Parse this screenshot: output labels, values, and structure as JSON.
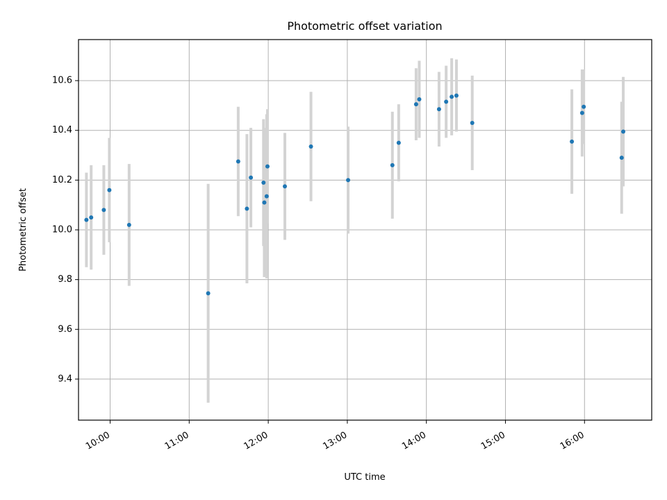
{
  "chart_data": {
    "type": "scatter",
    "title": "Photometric offset variation",
    "xlabel": "UTC time",
    "ylabel": "Photometric offset",
    "x_unit": "hours (UTC)",
    "xlim": [
      9.6,
      16.85
    ],
    "ylim": [
      9.235,
      10.765
    ],
    "xticks": [
      {
        "value": 10,
        "label": "10:00"
      },
      {
        "value": 11,
        "label": "11:00"
      },
      {
        "value": 12,
        "label": "12:00"
      },
      {
        "value": 13,
        "label": "13:00"
      },
      {
        "value": 14,
        "label": "14:00"
      },
      {
        "value": 15,
        "label": "15:00"
      },
      {
        "value": 16,
        "label": "16:00"
      }
    ],
    "yticks": [
      {
        "value": 9.4,
        "label": "9.4"
      },
      {
        "value": 9.6,
        "label": "9.6"
      },
      {
        "value": 9.8,
        "label": "9.8"
      },
      {
        "value": 10.0,
        "label": "10.0"
      },
      {
        "value": 10.2,
        "label": "10.2"
      },
      {
        "value": 10.4,
        "label": "10.4"
      },
      {
        "value": 10.6,
        "label": "10.6"
      }
    ],
    "grid": true,
    "colors": {
      "points": "#1f77b4",
      "errorbars": "#d3d3d3"
    },
    "points": [
      {
        "x": 9.7,
        "y": 10.04,
        "err": 0.19
      },
      {
        "x": 9.76,
        "y": 10.05,
        "err": 0.21
      },
      {
        "x": 9.92,
        "y": 10.08,
        "err": 0.18
      },
      {
        "x": 9.99,
        "y": 10.16,
        "err": 0.21
      },
      {
        "x": 10.24,
        "y": 10.02,
        "err": 0.245
      },
      {
        "x": 11.24,
        "y": 9.745,
        "err": 0.44
      },
      {
        "x": 11.62,
        "y": 10.275,
        "err": 0.22
      },
      {
        "x": 11.73,
        "y": 10.085,
        "err": 0.3
      },
      {
        "x": 11.78,
        "y": 10.21,
        "err": 0.2
      },
      {
        "x": 11.94,
        "y": 10.19,
        "err": 0.255
      },
      {
        "x": 11.95,
        "y": 10.11,
        "err": 0.3
      },
      {
        "x": 11.98,
        "y": 10.135,
        "err": 0.33
      },
      {
        "x": 11.99,
        "y": 10.255,
        "err": 0.23
      },
      {
        "x": 12.21,
        "y": 10.175,
        "err": 0.215
      },
      {
        "x": 12.54,
        "y": 10.335,
        "err": 0.22
      },
      {
        "x": 13.01,
        "y": 10.2,
        "err": 0.215
      },
      {
        "x": 13.57,
        "y": 10.26,
        "err": 0.215
      },
      {
        "x": 13.65,
        "y": 10.35,
        "err": 0.155
      },
      {
        "x": 13.87,
        "y": 10.505,
        "err": 0.145
      },
      {
        "x": 13.91,
        "y": 10.525,
        "err": 0.155
      },
      {
        "x": 14.16,
        "y": 10.485,
        "err": 0.15
      },
      {
        "x": 14.25,
        "y": 10.515,
        "err": 0.145
      },
      {
        "x": 14.32,
        "y": 10.535,
        "err": 0.155
      },
      {
        "x": 14.38,
        "y": 10.54,
        "err": 0.145
      },
      {
        "x": 14.58,
        "y": 10.43,
        "err": 0.19
      },
      {
        "x": 15.84,
        "y": 10.355,
        "err": 0.21
      },
      {
        "x": 15.97,
        "y": 10.47,
        "err": 0.175
      },
      {
        "x": 15.99,
        "y": 10.495,
        "err": 0.15
      },
      {
        "x": 16.47,
        "y": 10.29,
        "err": 0.225
      },
      {
        "x": 16.49,
        "y": 10.395,
        "err": 0.22
      }
    ]
  }
}
